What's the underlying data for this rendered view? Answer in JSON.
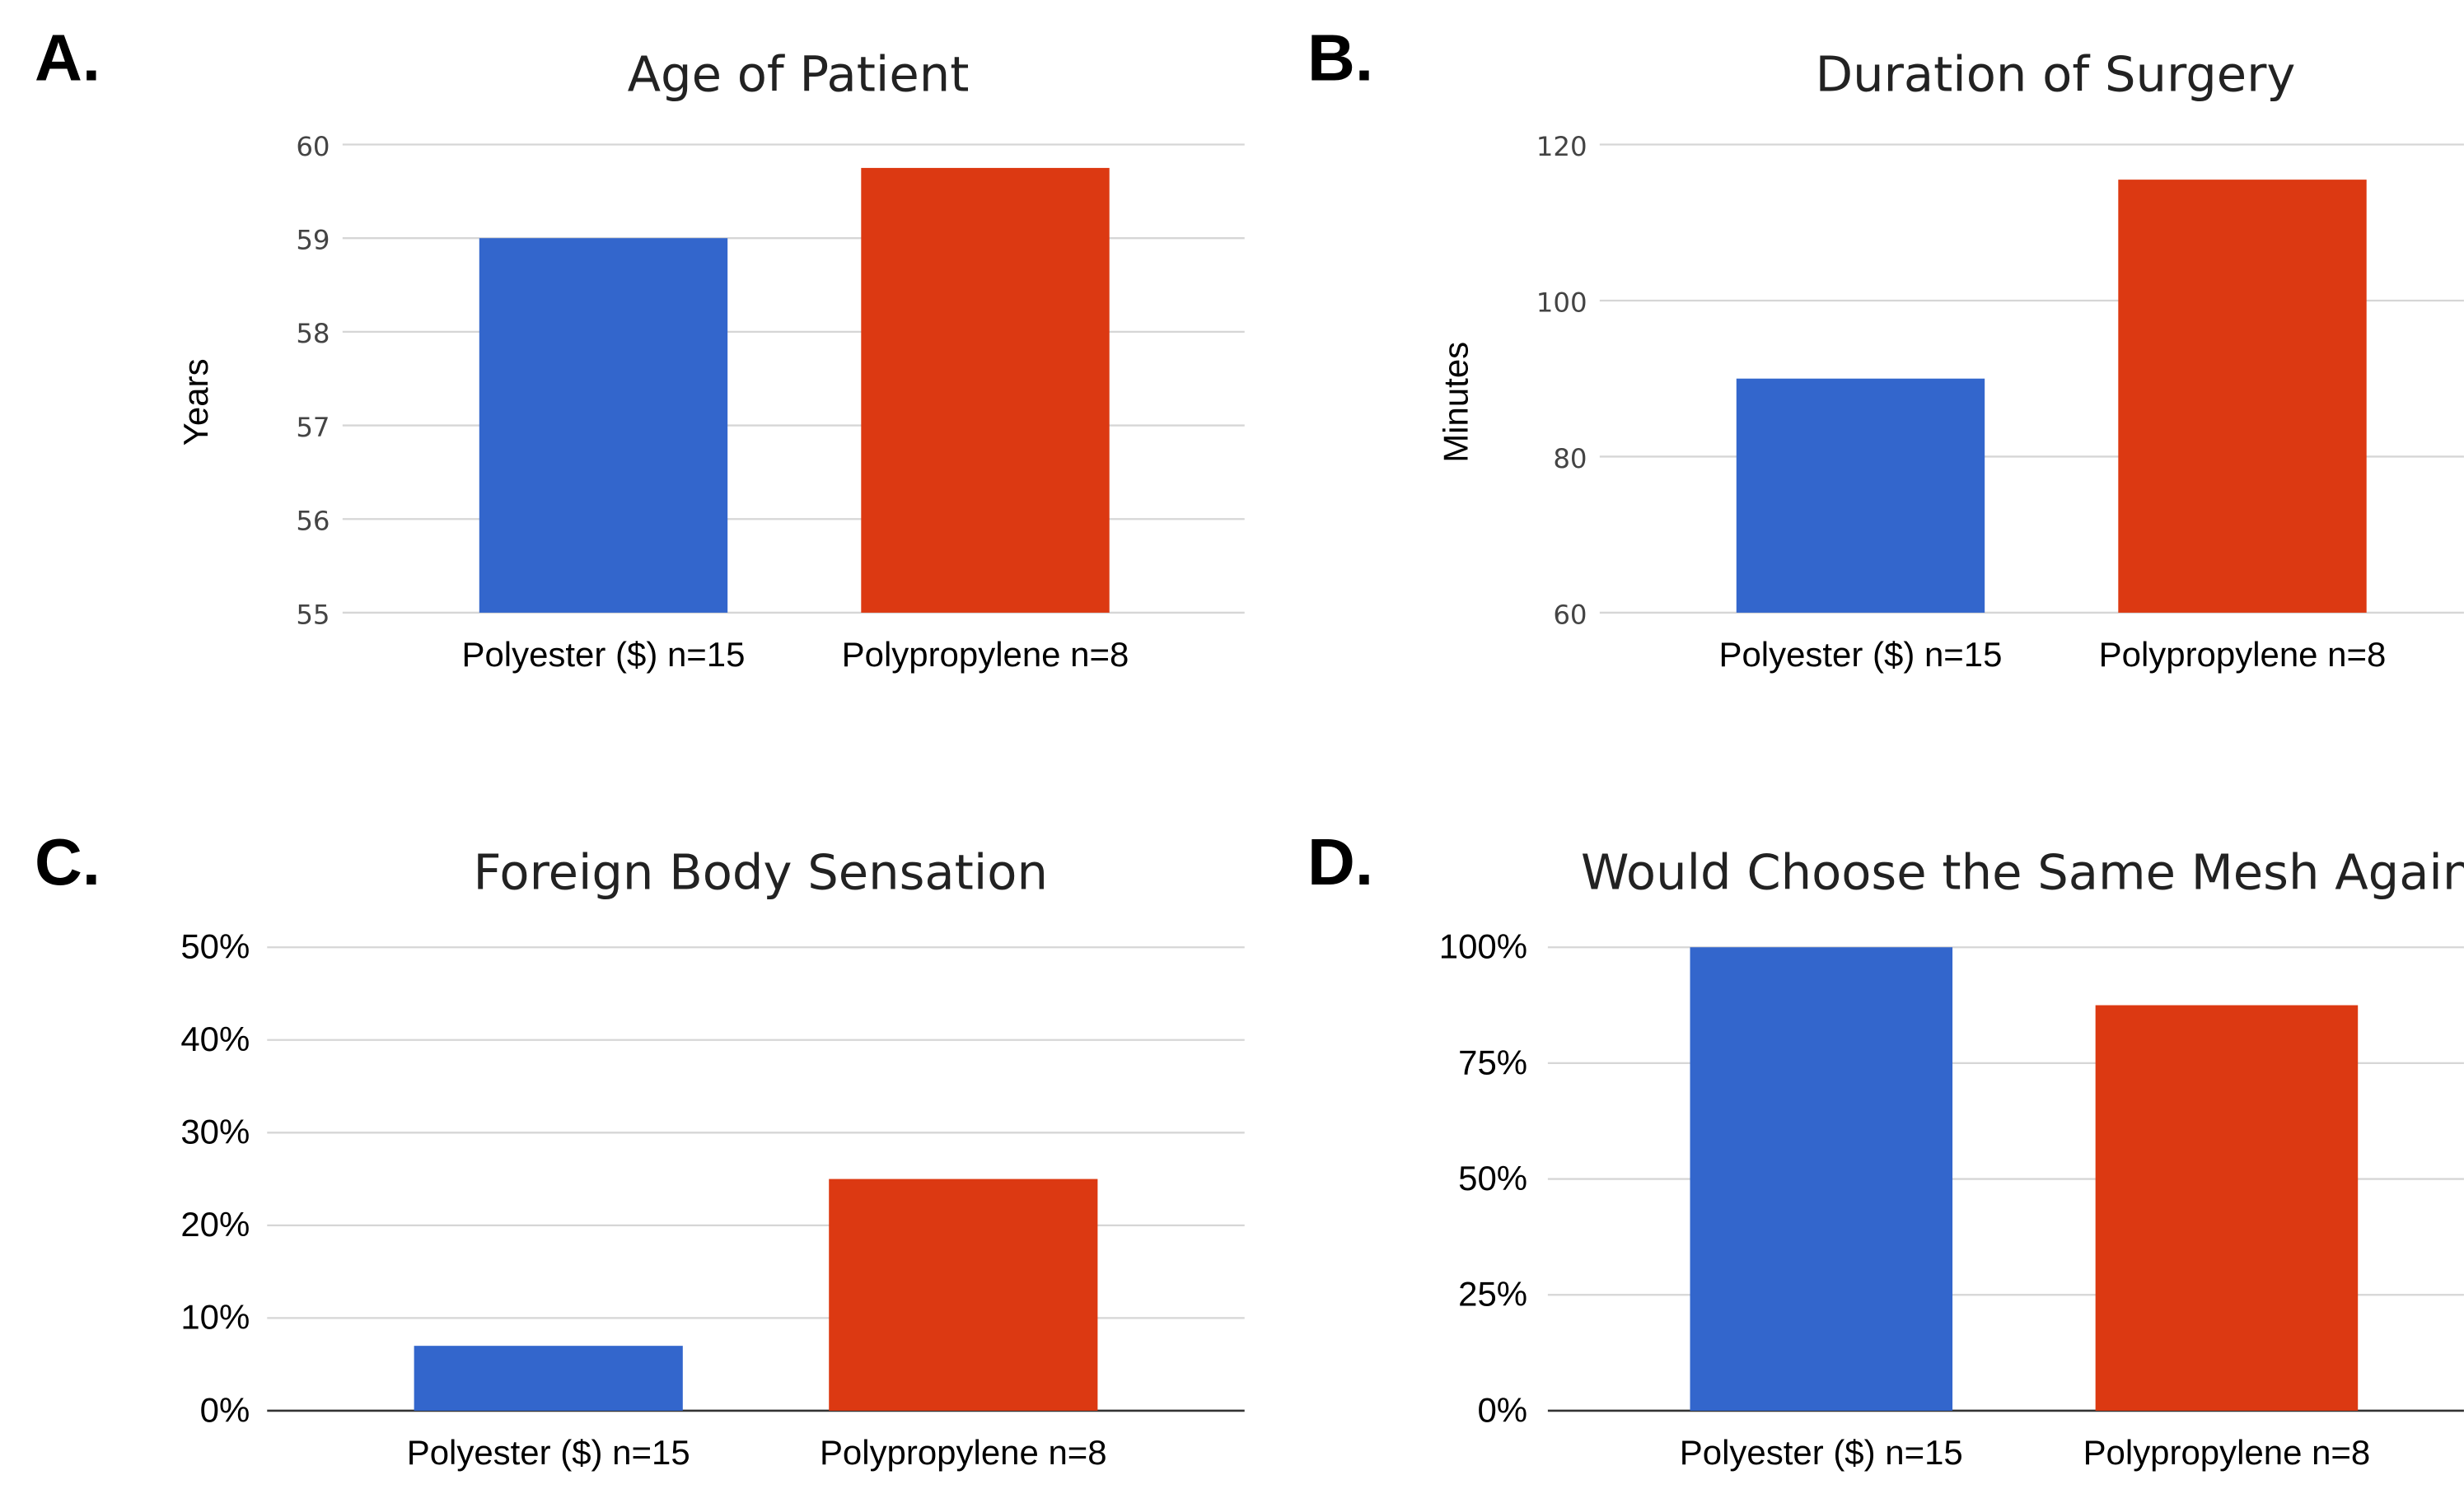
{
  "chart_data": [
    {
      "panel": "A.",
      "type": "bar",
      "title": "Age of Patient",
      "ylabel": "Years",
      "categories": [
        "Polyester ($) n=15",
        "Polypropylene n=8"
      ],
      "values": [
        59.0,
        59.75
      ],
      "colors": [
        "#3366cc",
        "#dc3912"
      ],
      "ylim": [
        55,
        60
      ],
      "yticks": [
        55,
        56,
        57,
        58,
        59,
        60
      ],
      "ytick_labels": [
        "55",
        "56",
        "57",
        "58",
        "59",
        "60"
      ],
      "grid": true,
      "legend": "none"
    },
    {
      "panel": "B.",
      "type": "bar",
      "title": "Duration of Surgery",
      "ylabel": "Minutes",
      "categories": [
        "Polyester ($) n=15",
        "Polypropylene n=8"
      ],
      "values": [
        90,
        115.5
      ],
      "colors": [
        "#3366cc",
        "#dc3912"
      ],
      "ylim": [
        60,
        120
      ],
      "yticks": [
        60,
        80,
        100,
        120
      ],
      "ytick_labels": [
        "60",
        "80",
        "100",
        "120"
      ],
      "grid": true,
      "legend": "none"
    },
    {
      "panel": "C.",
      "type": "bar",
      "title": "Foreign Body Sensation",
      "ylabel": "",
      "categories": [
        "Polyester ($) n=15",
        "Polypropylene n=8"
      ],
      "values": [
        7,
        25
      ],
      "colors": [
        "#3366cc",
        "#dc3912"
      ],
      "ylim": [
        0,
        50
      ],
      "yticks": [
        0,
        10,
        20,
        30,
        40,
        50
      ],
      "ytick_labels": [
        "0%",
        "10%",
        "20%",
        "30%",
        "40%",
        "50%"
      ],
      "grid": true,
      "legend": "none"
    },
    {
      "panel": "D.",
      "type": "bar",
      "title": "Would Choose the Same Mesh Again",
      "ylabel": "",
      "categories": [
        "Polyester ($) n=15",
        "Polypropylene n=8"
      ],
      "values": [
        100,
        87.5
      ],
      "colors": [
        "#3366cc",
        "#dc3912"
      ],
      "ylim": [
        0,
        100
      ],
      "yticks": [
        0,
        25,
        50,
        75,
        100
      ],
      "ytick_labels": [
        "0%",
        "25%",
        "50%",
        "75%",
        "100%"
      ],
      "grid": true,
      "legend": "none"
    }
  ]
}
